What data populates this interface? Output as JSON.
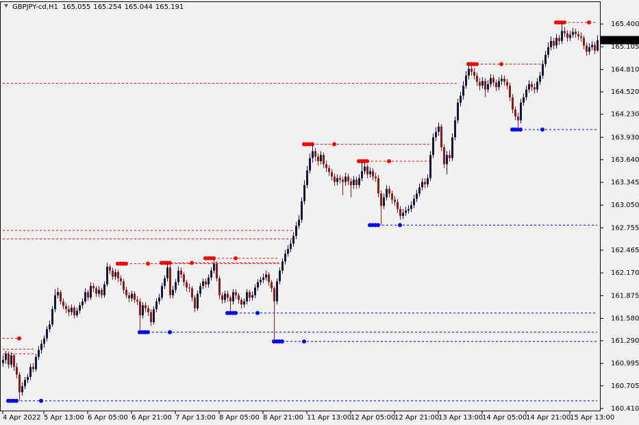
{
  "chart_data": {
    "type": "candlestick",
    "symbol": "GBPJPY-cd,H1",
    "up_color": "#14143c",
    "down_color": "#8b1a1a",
    "ylim": [
      160.374,
      165.694
    ],
    "yticks": [
      {
        "value": 165.4,
        "label": "165.400"
      },
      165.105,
      {
        "value": 164.81,
        "label": "164.810"
      },
      {
        "value": 164.52,
        "label": "164.520"
      },
      {
        "value": 164.23,
        "label": "164.230"
      },
      {
        "value": 163.93,
        "label": "163.930"
      },
      {
        "value": 163.64,
        "label": "163.640"
      },
      163.345,
      {
        "value": 163.05,
        "label": "163.050"
      },
      162.755,
      162.465,
      {
        "value": 162.17,
        "label": "162.170"
      },
      161.875,
      {
        "value": 161.58,
        "label": "161.580"
      },
      {
        "value": 161.29,
        "label": "161.290"
      },
      160.995,
      160.705,
      {
        "value": 160.41,
        "label": "160.410"
      }
    ],
    "categories": [
      "4 Apr 2022",
      null,
      null,
      null,
      null,
      null,
      null,
      null,
      null,
      null,
      null,
      null,
      null,
      null,
      null,
      "5 Apr 13:00",
      null,
      null,
      null,
      null,
      null,
      null,
      null,
      null,
      null,
      null,
      null,
      null,
      null,
      null,
      null,
      "6 Apr 05:00",
      null,
      null,
      null,
      null,
      null,
      null,
      null,
      null,
      null,
      null,
      null,
      null,
      null,
      null,
      null,
      "6 Apr 21:00",
      null,
      null,
      null,
      null,
      null,
      null,
      null,
      null,
      null,
      null,
      null,
      null,
      null,
      null,
      null,
      "7 Apr 13:00",
      null,
      null,
      null,
      null,
      null,
      null,
      null,
      null,
      null,
      null,
      null,
      null,
      null,
      null,
      null,
      "8 Apr 05:00",
      null,
      null,
      null,
      null,
      null,
      null,
      null,
      null,
      null,
      null,
      null,
      null,
      null,
      null,
      null,
      "8 Apr 21:00",
      null,
      null,
      null,
      null,
      null,
      null,
      null,
      null,
      null,
      null,
      null,
      null,
      null,
      null,
      null,
      "11 Apr 13:00",
      null,
      null,
      null,
      null,
      null,
      null,
      null,
      null,
      null,
      null,
      null,
      null,
      null,
      null,
      null,
      "12 Apr 05:00",
      null,
      null,
      null,
      null,
      null,
      null,
      null,
      null,
      null,
      null,
      null,
      null,
      null,
      null,
      null,
      "12 Apr 21:00",
      null,
      null,
      null,
      null,
      null,
      null,
      null,
      null,
      null,
      null,
      null,
      null,
      null,
      null,
      null,
      "13 Apr 13:00",
      null,
      null,
      null,
      null,
      null,
      null,
      null,
      null,
      null,
      null,
      null,
      null,
      null,
      null,
      null,
      "14 Apr 05:00",
      null,
      null,
      null,
      null,
      null,
      null,
      null,
      null,
      null,
      null,
      null,
      null,
      null,
      null,
      null,
      "14 Apr 21:00",
      null,
      null,
      null,
      null,
      null,
      null,
      null,
      null,
      null,
      null,
      null,
      null,
      null,
      null,
      null,
      "15 Apr 13:00",
      null,
      null,
      null,
      null,
      null,
      null,
      null,
      null,
      null,
      null
    ],
    "open": [
      161.0,
      161.04,
      161.12,
      160.98,
      161.1,
      160.95,
      160.85,
      160.62,
      160.7,
      160.78,
      160.82,
      160.95,
      160.92,
      161.08,
      161.17,
      161.25,
      161.32,
      161.44,
      161.5,
      161.7,
      161.88,
      161.92,
      161.8,
      161.74,
      161.7,
      161.66,
      161.72,
      161.62,
      161.68,
      161.75,
      161.8,
      161.92,
      161.85,
      162.0,
      161.97,
      161.9,
      161.95,
      161.88,
      162.02,
      162.25,
      162.2,
      162.12,
      162.18,
      162.1,
      162.06,
      161.95,
      161.88,
      161.84,
      161.9,
      161.82,
      161.8,
      161.62,
      161.75,
      161.71,
      161.66,
      161.53,
      161.7,
      161.8,
      161.85,
      162.0,
      162.1,
      162.24,
      161.88,
      161.95,
      162.05,
      162.2,
      162.15,
      162.05,
      161.98,
      161.97,
      161.85,
      161.71,
      161.9,
      162.0,
      162.06,
      162.02,
      162.11,
      162.2,
      162.29,
      162.1,
      161.88,
      161.82,
      161.9,
      161.85,
      161.8,
      161.92,
      161.88,
      161.82,
      161.76,
      161.8,
      161.92,
      161.85,
      161.88,
      161.98,
      162.05,
      162.08,
      162.11,
      162.15,
      162.05,
      161.97,
      161.8,
      162.06,
      162.2,
      162.32,
      162.42,
      162.48,
      162.55,
      162.65,
      162.78,
      162.86,
      163.1,
      163.31,
      163.5,
      163.66,
      163.75,
      163.68,
      163.62,
      163.7,
      163.58,
      163.53,
      163.48,
      163.42,
      163.35,
      163.4,
      163.38,
      163.35,
      163.42,
      163.36,
      163.31,
      163.38,
      163.31,
      163.4,
      163.49,
      163.55,
      163.45,
      163.49,
      163.42,
      163.4,
      163.2,
      163.04,
      163.15,
      163.26,
      163.2,
      163.12,
      163.09,
      163.0,
      162.91,
      162.95,
      162.98,
      163.0,
      163.05,
      163.13,
      163.2,
      163.28,
      163.35,
      163.32,
      163.4,
      163.7,
      163.93,
      164.0,
      164.07,
      163.8,
      163.58,
      163.7,
      163.66,
      163.93,
      164.15,
      164.38,
      164.47,
      164.6,
      164.73,
      164.82,
      164.78,
      164.73,
      164.65,
      164.6,
      164.66,
      164.55,
      164.62,
      164.7,
      164.64,
      164.58,
      164.66,
      164.69,
      164.65,
      164.6,
      164.45,
      164.29,
      164.2,
      164.15,
      164.38,
      164.45,
      164.55,
      164.62,
      164.58,
      164.55,
      164.65,
      164.73,
      164.88,
      165.0,
      165.1,
      165.18,
      165.12,
      165.22,
      165.18,
      165.31,
      165.28,
      165.22,
      165.26,
      165.3,
      165.27,
      165.24,
      165.22,
      165.12,
      165.04,
      165.1,
      165.13,
      165.055
    ],
    "high": [
      161.1,
      161.16,
      161.15,
      161.14,
      161.12,
      161.0,
      160.88,
      160.75,
      160.82,
      160.86,
      160.99,
      161.0,
      161.12,
      161.22,
      161.3,
      161.36,
      161.48,
      161.55,
      161.74,
      161.96,
      161.98,
      161.95,
      161.84,
      161.78,
      161.75,
      161.76,
      161.75,
      161.72,
      161.79,
      161.84,
      161.97,
      161.95,
      162.05,
      162.04,
      162.0,
      162.0,
      161.98,
      162.06,
      162.3,
      162.28,
      162.24,
      162.22,
      162.21,
      162.14,
      162.09,
      161.99,
      161.92,
      161.94,
      161.93,
      161.87,
      161.84,
      161.79,
      161.79,
      161.75,
      161.7,
      161.74,
      161.84,
      161.9,
      162.04,
      162.14,
      162.3,
      162.27,
      162.0,
      162.09,
      162.25,
      162.24,
      162.18,
      162.08,
      162.03,
      162.0,
      161.88,
      161.94,
      162.04,
      162.1,
      162.1,
      162.15,
      162.24,
      162.36,
      162.32,
      162.13,
      161.92,
      161.94,
      161.94,
      161.88,
      161.96,
      161.96,
      161.91,
      161.85,
      161.84,
      161.96,
      161.95,
      161.93,
      162.02,
      162.09,
      162.12,
      162.16,
      162.2,
      162.18,
      162.08,
      162.0,
      162.1,
      162.24,
      162.36,
      162.47,
      162.53,
      162.6,
      162.7,
      162.83,
      162.92,
      163.15,
      163.37,
      163.56,
      163.72,
      163.84,
      163.79,
      163.72,
      163.75,
      163.73,
      163.63,
      163.57,
      163.52,
      163.46,
      163.45,
      163.44,
      163.42,
      163.47,
      163.46,
      163.4,
      163.43,
      163.42,
      163.45,
      163.62,
      163.6,
      163.58,
      163.54,
      163.53,
      163.47,
      163.44,
      163.24,
      163.2,
      163.31,
      163.3,
      163.24,
      163.17,
      163.13,
      163.04,
      163.0,
      163.03,
      163.05,
      163.1,
      163.18,
      163.25,
      163.33,
      163.4,
      163.4,
      163.45,
      163.75,
      163.98,
      164.06,
      164.12,
      164.1,
      163.84,
      163.75,
      163.76,
      163.98,
      164.2,
      164.43,
      164.52,
      164.66,
      164.79,
      164.88,
      164.87,
      164.83,
      164.77,
      164.7,
      164.71,
      164.7,
      164.67,
      164.75,
      164.74,
      164.68,
      164.71,
      164.74,
      164.73,
      164.69,
      164.64,
      164.49,
      164.33,
      164.25,
      164.43,
      164.5,
      164.6,
      164.67,
      164.66,
      164.63,
      164.7,
      164.78,
      164.93,
      165.05,
      165.16,
      165.24,
      165.22,
      165.27,
      165.26,
      165.42,
      165.36,
      165.32,
      165.31,
      165.35,
      165.34,
      165.31,
      165.29,
      165.25,
      165.16,
      165.15,
      165.18,
      165.17,
      165.254
    ],
    "low": [
      160.95,
      160.99,
      160.93,
      160.94,
      160.9,
      160.8,
      160.51,
      160.58,
      160.66,
      160.74,
      160.78,
      160.88,
      160.89,
      161.04,
      161.12,
      161.2,
      161.28,
      161.4,
      161.47,
      161.66,
      161.84,
      161.76,
      161.7,
      161.65,
      161.61,
      161.62,
      161.58,
      161.59,
      161.64,
      161.71,
      161.77,
      161.81,
      161.82,
      161.92,
      161.86,
      161.86,
      161.84,
      161.85,
      161.99,
      162.15,
      162.08,
      162.08,
      162.05,
      162.01,
      161.9,
      161.84,
      161.79,
      161.8,
      161.78,
      161.75,
      161.4,
      161.58,
      161.66,
      161.61,
      161.48,
      161.5,
      161.66,
      161.76,
      161.82,
      161.96,
      162.06,
      161.84,
      161.84,
      161.91,
      162.01,
      162.1,
      162.0,
      161.93,
      161.92,
      161.8,
      161.66,
      161.68,
      161.86,
      161.96,
      161.98,
      161.98,
      162.07,
      162.16,
      162.06,
      161.83,
      161.77,
      161.78,
      161.8,
      161.65,
      161.76,
      161.83,
      161.77,
      161.71,
      161.72,
      161.76,
      161.8,
      161.81,
      161.84,
      161.94,
      162.01,
      162.04,
      162.07,
      162.0,
      161.92,
      161.28,
      161.76,
      162.02,
      162.16,
      162.28,
      162.38,
      162.44,
      162.51,
      162.61,
      162.74,
      162.82,
      163.06,
      163.27,
      163.46,
      163.6,
      163.62,
      163.56,
      163.58,
      163.53,
      163.48,
      163.43,
      163.37,
      163.3,
      163.31,
      163.33,
      163.18,
      163.3,
      163.31,
      163.15,
      163.26,
      163.26,
      163.27,
      163.36,
      163.45,
      163.4,
      163.41,
      163.37,
      163.35,
      163.15,
      162.79,
      163.0,
      163.11,
      163.15,
      163.07,
      163.04,
      162.95,
      162.86,
      162.87,
      162.91,
      162.94,
      162.96,
      163.01,
      163.09,
      163.16,
      163.24,
      163.27,
      163.28,
      163.36,
      163.66,
      163.88,
      163.95,
      163.75,
      163.53,
      163.45,
      163.61,
      163.62,
      163.89,
      164.11,
      164.33,
      164.42,
      164.56,
      164.68,
      164.73,
      164.68,
      164.6,
      164.54,
      164.56,
      164.45,
      164.51,
      164.58,
      164.59,
      164.53,
      164.54,
      164.61,
      164.6,
      164.55,
      164.4,
      164.24,
      164.15,
      164.03,
      164.11,
      164.34,
      164.41,
      164.51,
      164.53,
      164.5,
      164.51,
      164.61,
      164.69,
      164.84,
      164.96,
      165.06,
      165.07,
      165.08,
      165.13,
      165.14,
      165.23,
      165.17,
      165.18,
      165.22,
      165.22,
      165.19,
      165.17,
      165.07,
      164.99,
      165.0,
      165.06,
      165.01,
      165.044
    ],
    "close": [
      161.04,
      161.12,
      160.98,
      161.1,
      160.95,
      160.85,
      160.62,
      160.7,
      160.78,
      160.82,
      160.95,
      160.92,
      161.08,
      161.17,
      161.25,
      161.32,
      161.44,
      161.5,
      161.7,
      161.88,
      161.92,
      161.8,
      161.74,
      161.7,
      161.66,
      161.72,
      161.62,
      161.68,
      161.75,
      161.8,
      161.92,
      161.85,
      162.0,
      161.97,
      161.9,
      161.95,
      161.88,
      162.02,
      162.25,
      162.2,
      162.12,
      162.18,
      162.1,
      162.06,
      161.95,
      161.88,
      161.84,
      161.9,
      161.82,
      161.8,
      161.62,
      161.75,
      161.71,
      161.66,
      161.53,
      161.7,
      161.8,
      161.85,
      162.0,
      162.1,
      162.24,
      161.88,
      161.95,
      162.05,
      162.2,
      162.15,
      162.05,
      161.98,
      161.97,
      161.85,
      161.71,
      161.9,
      162.0,
      162.06,
      162.02,
      162.11,
      162.2,
      162.29,
      162.1,
      161.88,
      161.82,
      161.9,
      161.85,
      161.8,
      161.92,
      161.88,
      161.82,
      161.76,
      161.8,
      161.92,
      161.85,
      161.88,
      161.98,
      162.05,
      162.08,
      162.11,
      162.15,
      162.05,
      161.97,
      161.8,
      162.06,
      162.2,
      162.32,
      162.42,
      162.48,
      162.55,
      162.65,
      162.78,
      162.86,
      163.1,
      163.31,
      163.5,
      163.66,
      163.75,
      163.68,
      163.62,
      163.7,
      163.58,
      163.53,
      163.48,
      163.42,
      163.35,
      163.4,
      163.38,
      163.35,
      163.42,
      163.36,
      163.31,
      163.38,
      163.31,
      163.4,
      163.49,
      163.55,
      163.45,
      163.49,
      163.42,
      163.4,
      163.2,
      163.04,
      163.15,
      163.26,
      163.2,
      163.12,
      163.09,
      163.0,
      162.91,
      162.95,
      162.98,
      163.0,
      163.05,
      163.13,
      163.2,
      163.28,
      163.35,
      163.32,
      163.4,
      163.7,
      163.93,
      164.0,
      164.07,
      163.8,
      163.58,
      163.7,
      163.66,
      163.93,
      164.15,
      164.38,
      164.47,
      164.6,
      164.73,
      164.82,
      164.78,
      164.73,
      164.65,
      164.6,
      164.66,
      164.55,
      164.62,
      164.7,
      164.64,
      164.58,
      164.66,
      164.69,
      164.65,
      164.6,
      164.45,
      164.29,
      164.2,
      164.15,
      164.38,
      164.45,
      164.55,
      164.62,
      164.58,
      164.55,
      164.65,
      164.73,
      164.88,
      165.0,
      165.1,
      165.18,
      165.12,
      165.22,
      165.18,
      165.31,
      165.28,
      165.22,
      165.26,
      165.3,
      165.27,
      165.24,
      165.22,
      165.12,
      165.04,
      165.1,
      165.13,
      165.055,
      165.191
    ],
    "levels": [
      {
        "price": 165.42,
        "color": "#ff0000",
        "from": 202,
        "to": 217,
        "dots": [
          202,
          203,
          204,
          205,
          214
        ]
      },
      {
        "price": 164.88,
        "color": "#ff0000",
        "from": 170,
        "to": 197,
        "dots": [
          170,
          171,
          172,
          173,
          182
        ]
      },
      {
        "price": 164.63,
        "color": "#ff0000",
        "from": 0,
        "to": 166
      },
      {
        "price": 163.84,
        "color": "#ff0000",
        "from": 110,
        "to": 156,
        "dots": [
          110,
          111,
          112,
          113,
          121
        ]
      },
      {
        "price": 163.62,
        "color": "#ff0000",
        "from": 130,
        "to": 156,
        "dots": [
          130,
          131,
          132,
          133,
          141
        ]
      },
      {
        "price": 162.72,
        "color": "#ff0000",
        "from": 0,
        "to": 106
      },
      {
        "price": 162.61,
        "color": "#ff0000",
        "from": 0,
        "to": 106
      },
      {
        "price": 162.36,
        "color": "#ff0000",
        "from": 74,
        "to": 101,
        "dots": [
          74,
          75,
          76,
          77,
          85
        ]
      },
      {
        "price": 162.29,
        "color": "#ff0000",
        "from": 42,
        "to": 101,
        "dots": [
          42,
          43,
          44,
          45,
          53
        ]
      },
      {
        "price": 162.3,
        "color": "#ff0000",
        "from": 58,
        "to": 101,
        "dots": [
          58,
          59,
          60,
          61,
          69
        ]
      },
      {
        "price": 161.32,
        "color": "#ff0000",
        "from": 0,
        "to": 6,
        "dots": [
          6
        ]
      },
      {
        "price": 161.18,
        "color": "#ff0000",
        "from": 0,
        "to": 12
      },
      {
        "price": 161.12,
        "color": "#ff0000",
        "from": 0,
        "to": 12
      },
      {
        "price": 164.03,
        "color": "#0000ff",
        "from": 186,
        "to": 217,
        "dots": [
          186,
          187,
          188,
          189,
          197
        ]
      },
      {
        "price": 162.79,
        "color": "#0000ff",
        "from": 134,
        "to": 217,
        "dots": [
          134,
          135,
          136,
          137,
          145
        ]
      },
      {
        "price": 161.65,
        "color": "#0000ff",
        "from": 82,
        "to": 217,
        "dots": [
          82,
          83,
          84,
          85,
          93
        ]
      },
      {
        "price": 161.4,
        "color": "#0000ff",
        "from": 50,
        "to": 217,
        "dots": [
          50,
          51,
          52,
          53,
          61
        ]
      },
      {
        "price": 161.28,
        "color": "#0000ff",
        "from": 99,
        "to": 217,
        "dots": [
          99,
          100,
          101,
          102,
          110
        ]
      },
      {
        "price": 160.51,
        "color": "#0000ff",
        "from": 2,
        "to": 217,
        "dots": [
          2,
          3,
          4,
          5,
          14
        ]
      }
    ]
  }
}
